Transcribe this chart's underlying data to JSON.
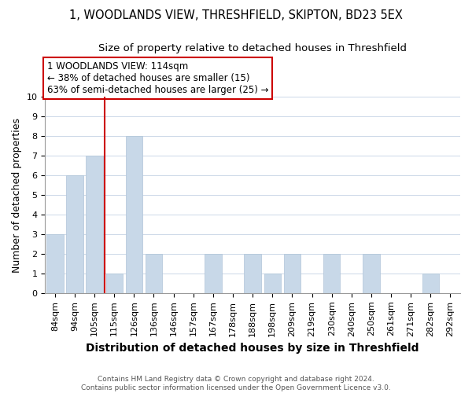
{
  "title": "1, WOODLANDS VIEW, THRESHFIELD, SKIPTON, BD23 5EX",
  "subtitle": "Size of property relative to detached houses in Threshfield",
  "xlabel": "Distribution of detached houses by size in Threshfield",
  "ylabel": "Number of detached properties",
  "footer_line1": "Contains HM Land Registry data © Crown copyright and database right 2024.",
  "footer_line2": "Contains public sector information licensed under the Open Government Licence v3.0.",
  "bar_labels": [
    "84sqm",
    "94sqm",
    "105sqm",
    "115sqm",
    "126sqm",
    "136sqm",
    "146sqm",
    "157sqm",
    "167sqm",
    "178sqm",
    "188sqm",
    "198sqm",
    "209sqm",
    "219sqm",
    "230sqm",
    "240sqm",
    "250sqm",
    "261sqm",
    "271sqm",
    "282sqm",
    "292sqm"
  ],
  "bar_values": [
    3,
    6,
    7,
    1,
    8,
    2,
    0,
    0,
    2,
    0,
    2,
    1,
    2,
    0,
    2,
    0,
    2,
    0,
    0,
    1,
    0
  ],
  "bar_color": "#c8d8e8",
  "bar_edge_color": "#b0c4d8",
  "vline_after_index": 2,
  "vline_color": "#cc0000",
  "annotation_line1": "1 WOODLANDS VIEW: 114sqm",
  "annotation_line2": "← 38% of detached houses are smaller (15)",
  "annotation_line3": "63% of semi-detached houses are larger (25) →",
  "annotation_box_edgecolor": "#cc0000",
  "ylim": [
    0,
    10
  ],
  "yticks": [
    0,
    1,
    2,
    3,
    4,
    5,
    6,
    7,
    8,
    9,
    10
  ],
  "grid_color": "#ccd8e8",
  "title_fontsize": 10.5,
  "subtitle_fontsize": 9.5,
  "xlabel_fontsize": 10,
  "ylabel_fontsize": 9,
  "tick_fontsize": 8,
  "annotation_fontsize": 8.5,
  "footer_fontsize": 6.5
}
